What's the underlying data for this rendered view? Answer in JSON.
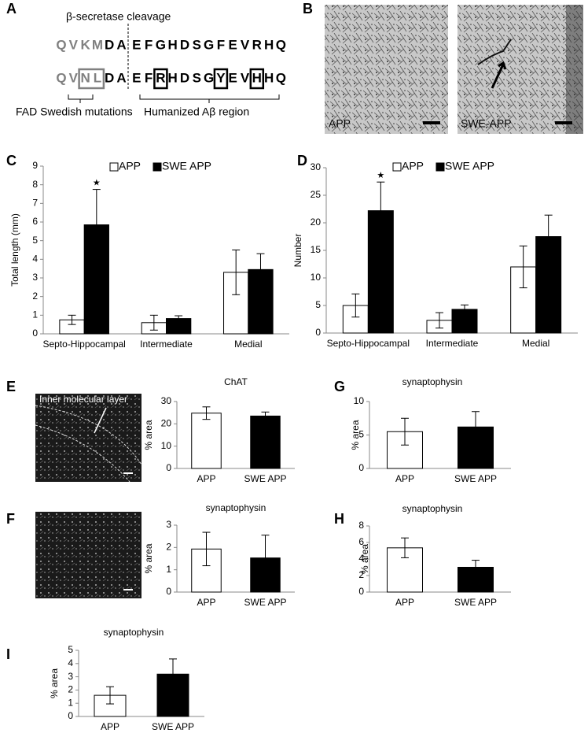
{
  "panel_labels": [
    "A",
    "B",
    "C",
    "D",
    "E",
    "F",
    "G",
    "H",
    "I"
  ],
  "panel_a": {
    "title": "β-secretase cleavage",
    "wild_type": [
      "Q",
      "V",
      "K",
      "M",
      "D",
      "A",
      "E",
      "F",
      "G",
      "H",
      "D",
      "S",
      "G",
      "F",
      "E",
      "V",
      "R",
      "H",
      "Q"
    ],
    "humanized": [
      "Q",
      "V",
      "N",
      "L",
      "D",
      "A",
      "E",
      "F",
      "R",
      "H",
      "D",
      "S",
      "G",
      "Y",
      "E",
      "V",
      "H",
      "H",
      "Q"
    ],
    "swedish_label": "FAD Swedish mutations",
    "humanized_label": "Humanized Aβ region"
  },
  "panel_b": {
    "left_label": "APP",
    "right_label": "SWE-APP"
  },
  "panel_e": {
    "image_label": "Inner molecular layer"
  },
  "chart_data": [
    {
      "type": "bar",
      "ylabel": "Total length (mm)",
      "categories": [
        "Septo-Hippocampal",
        "Intermediate",
        "Medial"
      ],
      "series": [
        {
          "name": "APP",
          "color": "#ffffff",
          "values": [
            0.75,
            0.6,
            3.3
          ],
          "errors": [
            0.25,
            0.4,
            1.2
          ]
        },
        {
          "name": "SWE APP",
          "color": "#000000",
          "values": [
            5.85,
            0.82,
            3.45
          ],
          "errors": [
            1.9,
            0.15,
            0.85
          ]
        }
      ],
      "annotation": "★",
      "ylim": [
        0,
        9
      ],
      "yticks": [
        0,
        1,
        2,
        3,
        4,
        5,
        6,
        7,
        8,
        9
      ]
    },
    {
      "type": "bar",
      "ylabel": "Number",
      "categories": [
        "Septo-Hippocampal",
        "Intermediate",
        "Medial"
      ],
      "series": [
        {
          "name": "APP",
          "color": "#ffffff",
          "values": [
            5,
            2.3,
            12
          ],
          "errors": [
            2.1,
            1.4,
            3.8
          ]
        },
        {
          "name": "SWE APP",
          "color": "#000000",
          "values": [
            22.2,
            4.3,
            17.5
          ],
          "errors": [
            5.2,
            0.8,
            3.9
          ]
        }
      ],
      "annotation": "★",
      "ylim": [
        0,
        30
      ],
      "yticks": [
        0,
        5,
        10,
        15,
        20,
        25,
        30
      ]
    },
    {
      "type": "bar",
      "title": "ChAT",
      "ylabel": "% area",
      "categories": [
        "APP",
        "SWE APP"
      ],
      "colors": [
        "#ffffff",
        "#000000"
      ],
      "values": [
        24.8,
        23.5
      ],
      "errors": [
        2.8,
        1.8
      ],
      "ylim": [
        0,
        30
      ],
      "yticks": [
        0,
        10,
        20,
        30
      ]
    },
    {
      "type": "bar",
      "title": "synaptophysin",
      "ylabel": "% area",
      "categories": [
        "APP",
        "SWE APP"
      ],
      "colors": [
        "#ffffff",
        "#000000"
      ],
      "values": [
        1.93,
        1.53
      ],
      "errors": [
        0.75,
        1.02
      ],
      "ylim": [
        0,
        3
      ],
      "yticks": [
        0,
        1,
        2,
        3
      ]
    },
    {
      "type": "bar",
      "title": "synaptophysin",
      "ylabel": "% area",
      "categories": [
        "APP",
        "SWE APP"
      ],
      "colors": [
        "#ffffff",
        "#000000"
      ],
      "values": [
        5.5,
        6.2
      ],
      "errors": [
        2,
        2.3
      ],
      "ylim": [
        0,
        10
      ],
      "yticks": [
        0,
        5,
        10
      ]
    },
    {
      "type": "bar",
      "title": "synaptophysin",
      "ylabel": "% area",
      "categories": [
        "APP",
        "SWE APP"
      ],
      "colors": [
        "#ffffff",
        "#000000"
      ],
      "values": [
        5.35,
        3.0
      ],
      "errors": [
        1.2,
        0.85
      ],
      "ylim": [
        0,
        8
      ],
      "yticks": [
        0,
        2,
        4,
        6,
        8
      ]
    },
    {
      "type": "bar",
      "title": "synaptophysin",
      "ylabel": "% area",
      "categories": [
        "APP",
        "SWE APP"
      ],
      "colors": [
        "#ffffff",
        "#000000"
      ],
      "values": [
        1.6,
        3.2
      ],
      "errors": [
        0.65,
        1.15
      ],
      "ylim": [
        0,
        5
      ],
      "yticks": [
        0,
        1,
        2,
        3,
        4,
        5
      ]
    }
  ]
}
